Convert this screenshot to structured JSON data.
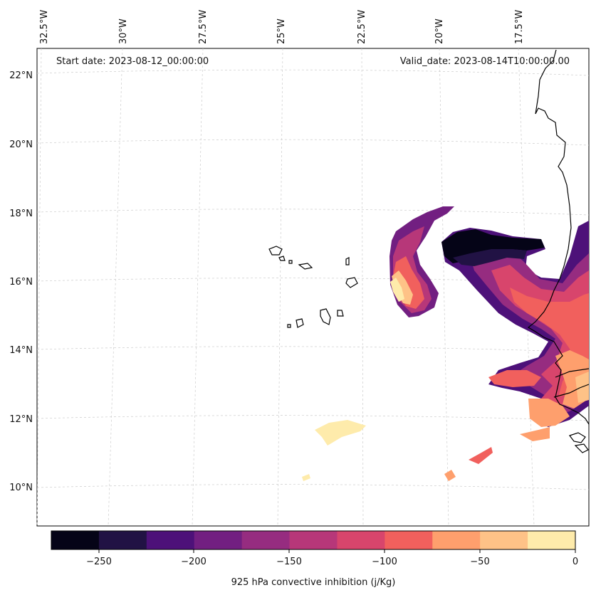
{
  "map": {
    "start_label": "Start date: 2023-08-12_00:00:00",
    "valid_label": "Valid_date: 2023-08-14T10:00:00.00",
    "lon_labels": [
      "32.5°W",
      "30°W",
      "27.5°W",
      "25°W",
      "22.5°W",
      "20°W",
      "17.5°W"
    ],
    "lat_labels": [
      "22°N",
      "20°N",
      "18°N",
      "16°N",
      "14°N",
      "12°N",
      "10°N"
    ]
  },
  "colorbar": {
    "title": "925 hPa convective inhibition (j/Kg)",
    "tick_labels": [
      "−250",
      "−200",
      "−150",
      "−100",
      "−50",
      "0"
    ],
    "colors": [
      "#050417",
      "#211244",
      "#4d1179",
      "#721f81",
      "#962c80",
      "#b73779",
      "#d8456c",
      "#f1605d",
      "#fe9f6d",
      "#fec287",
      "#feebab"
    ]
  }
}
